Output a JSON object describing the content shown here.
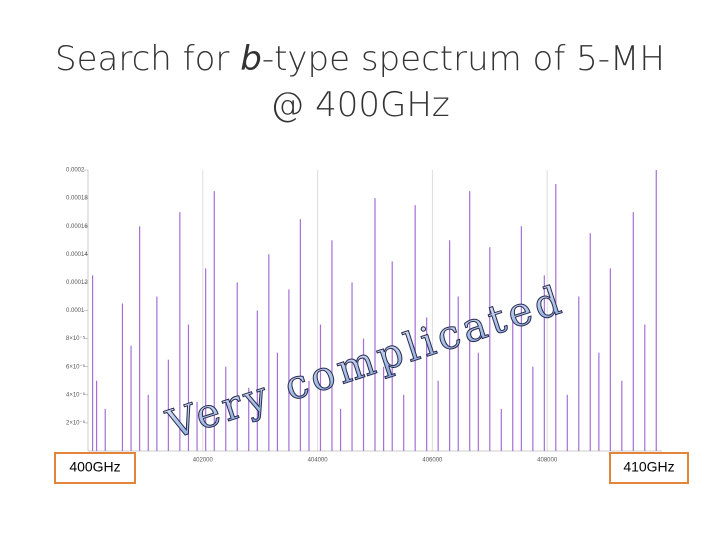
{
  "slide": {
    "title_before": "Search for ",
    "title_italic": "b",
    "title_after": "-type spectrum of 5-MH",
    "title_line2": "@ 400GHz",
    "annotation": "Very complicated",
    "left_label": "400GHz",
    "right_label": "410GHz"
  },
  "chart_data": {
    "type": "stick",
    "color": "#a56fd6",
    "grid": true,
    "x": [
      400080,
      400150,
      400300,
      400600,
      400750,
      400900,
      401050,
      401200,
      401400,
      401600,
      401750,
      401900,
      402050,
      402200,
      402400,
      402600,
      402800,
      402950,
      403150,
      403300,
      403500,
      403700,
      403850,
      404050,
      404250,
      404400,
      404600,
      404800,
      405000,
      405150,
      405300,
      405500,
      405700,
      405900,
      406100,
      406300,
      406450,
      406650,
      406800,
      407000,
      407200,
      407400,
      407550,
      407750,
      407950,
      408150,
      408350,
      408550,
      408750,
      408900,
      409100,
      409300,
      409500,
      409700,
      409900
    ],
    "values": [
      0.000125,
      5e-05,
      3e-05,
      0.000105,
      7.5e-05,
      0.00016,
      4e-05,
      0.00011,
      6.5e-05,
      0.00017,
      9e-05,
      3.5e-05,
      0.00013,
      0.000185,
      6e-05,
      0.00012,
      4.5e-05,
      0.0001,
      0.00014,
      7e-05,
      0.000115,
      0.000165,
      5e-05,
      9e-05,
      0.00015,
      3e-05,
      0.00012,
      8e-05,
      0.00018,
      6e-05,
      0.000135,
      4e-05,
      0.000175,
      9.5e-05,
      5e-05,
      0.00015,
      0.00011,
      0.000185,
      7e-05,
      0.000145,
      3e-05,
      0.0001,
      0.00016,
      6e-05,
      0.000125,
      0.00019,
      4e-05,
      0.00011,
      0.000155,
      7e-05,
      0.00013,
      5e-05,
      0.00017,
      9e-05,
      0.0002
    ],
    "xlim": [
      400000,
      410000
    ],
    "xticks": [
      402000,
      404000,
      406000,
      408000
    ],
    "ylim": [
      0,
      0.0002
    ],
    "yticks": [
      {
        "value": 2e-05,
        "label": "2×10⁻⁵"
      },
      {
        "value": 4e-05,
        "label": "4×10⁻⁵"
      },
      {
        "value": 6e-05,
        "label": "6×10⁻⁵"
      },
      {
        "value": 8e-05,
        "label": "8×10⁻⁵"
      },
      0.0001,
      0.00012,
      0.00014,
      0.00016,
      0.00018,
      0.0002
    ]
  }
}
